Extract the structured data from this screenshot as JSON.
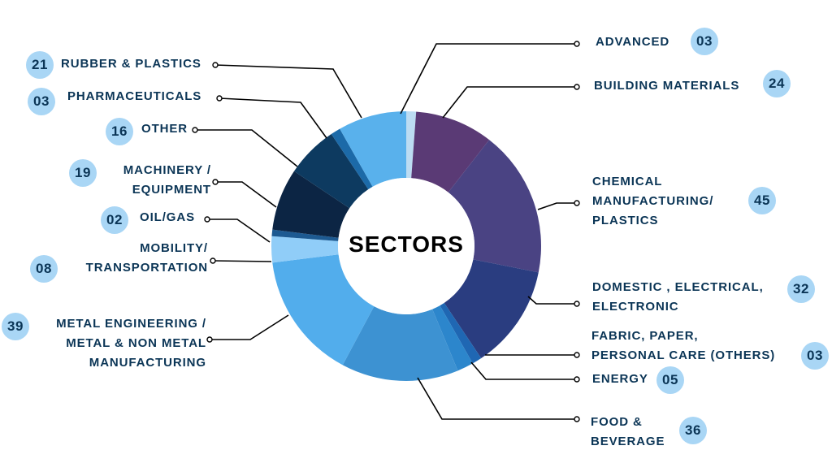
{
  "chart_data": {
    "type": "donut",
    "title": "SECTORS",
    "colors": {
      "label_text": "#0b3556",
      "badge_bg": "#a9d6f5",
      "leader": "#000000"
    },
    "slices": [
      {
        "label": "ADVANCED",
        "value": "03",
        "color": "#bcdcf2"
      },
      {
        "label": "BUILDING MATERIALS",
        "value": "24",
        "color": "#5a3a75"
      },
      {
        "label": "CHEMICAL MANUFACTURING/ PLASTICS",
        "value": "45",
        "color": "#4a4383"
      },
      {
        "label": "DOMESTIC , ELECTRICAL, ELECTRONIC",
        "value": "32",
        "color": "#2a3d80"
      },
      {
        "label": "FABRIC, PAPER, PERSONAL CARE (OTHERS)",
        "value": "03",
        "color": "#1f67b3"
      },
      {
        "label": "ENERGY",
        "value": "05",
        "color": "#2c86cc"
      },
      {
        "label": "FOOD & BEVERAGE",
        "value": "36",
        "color": "#3d92d2"
      },
      {
        "label": "METAL ENGINEERING / METAL & NON METAL MANUFACTURING",
        "value": "39",
        "color": "#52adec"
      },
      {
        "label": "MOBILITY/ TRANSPORTATION",
        "value": "08",
        "color": "#90cdf8"
      },
      {
        "label": "OIL/GAS",
        "value": "02",
        "color": "#1d5a92"
      },
      {
        "label": "MACHINERY / EQUIPMENT",
        "value": "19",
        "color": "#0c2544"
      },
      {
        "label": "OTHER",
        "value": "16",
        "color": "#0d3a60"
      },
      {
        "label": "PHARMACEUTICALS",
        "value": "03",
        "color": "#1c6aa8"
      },
      {
        "label": "RUBBER & PLASTICS",
        "value": "21",
        "color": "#59b1ec"
      }
    ]
  },
  "labels": {
    "advanced": [
      "ADVANCED"
    ],
    "building_materials": [
      "BUILDING MATERIALS"
    ],
    "chemical": [
      "CHEMICAL",
      "MANUFACTURING/",
      "PLASTICS"
    ],
    "domestic": [
      "DOMESTIC , ELECTRICAL,",
      "ELECTRONIC"
    ],
    "fabric": [
      "FABRIC, PAPER,",
      "PERSONAL CARE (OTHERS)"
    ],
    "energy": [
      "ENERGY"
    ],
    "food": [
      "FOOD &",
      "BEVERAGE"
    ],
    "metal": [
      "METAL ENGINEERING /",
      "METAL & NON METAL",
      "MANUFACTURING"
    ],
    "mobility": [
      "MOBILITY/",
      "TRANSPORTATION"
    ],
    "oil": [
      "OIL/GAS"
    ],
    "machinery": [
      "MACHINERY /",
      "EQUIPMENT"
    ],
    "other": [
      "OTHER"
    ],
    "pharma": [
      "PHARMACEUTICALS"
    ],
    "rubber": [
      "RUBBER & PLASTICS"
    ]
  }
}
